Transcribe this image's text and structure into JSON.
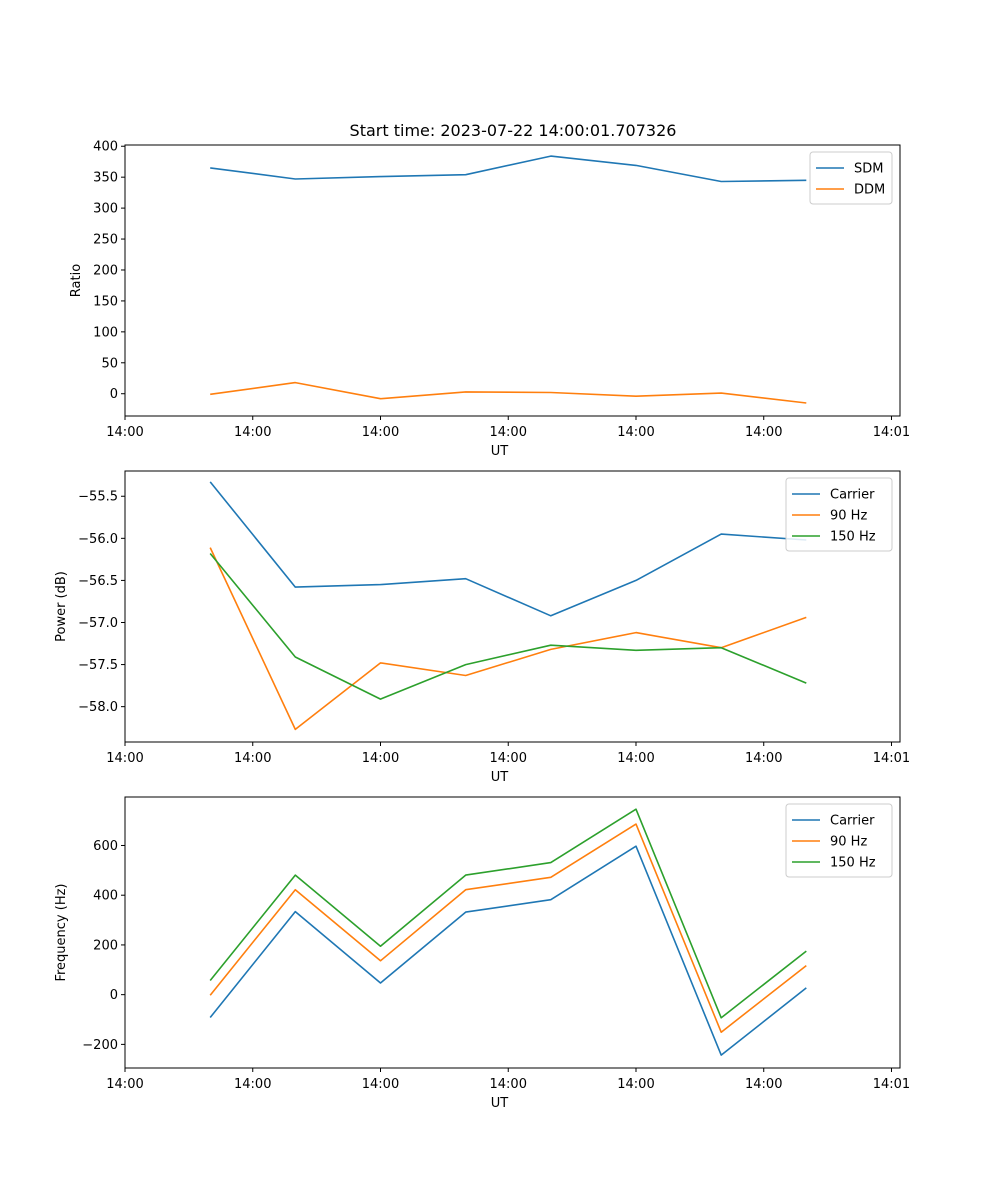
{
  "figure": {
    "title": "Start time: 2023-07-22 14:00:01.707326"
  },
  "colors": {
    "blue": "#1f77b4",
    "orange": "#ff7f0e",
    "green": "#2ca02c"
  },
  "chart_data": [
    {
      "type": "line",
      "title": "Start time: 2023-07-22 14:00:01.707326",
      "xlabel": "UT",
      "ylabel": "Ratio",
      "x": [
        1,
        2,
        3,
        4,
        5,
        6,
        7,
        8
      ],
      "xlim": [
        0,
        9.1
      ],
      "xticks": [
        {
          "v": 0,
          "label": "14:00"
        },
        {
          "v": 1.5,
          "label": "14:00"
        },
        {
          "v": 3,
          "label": "14:00"
        },
        {
          "v": 4.5,
          "label": "14:00"
        },
        {
          "v": 6,
          "label": "14:00"
        },
        {
          "v": 7.5,
          "label": "14:00"
        },
        {
          "v": 9,
          "label": "14:01"
        }
      ],
      "ylim": [
        -36,
        402
      ],
      "yticks": [
        {
          "v": 0,
          "label": "0"
        },
        {
          "v": 50,
          "label": "50"
        },
        {
          "v": 100,
          "label": "100"
        },
        {
          "v": 150,
          "label": "150"
        },
        {
          "v": 200,
          "label": "200"
        },
        {
          "v": 250,
          "label": "250"
        },
        {
          "v": 300,
          "label": "300"
        },
        {
          "v": 350,
          "label": "350"
        },
        {
          "v": 400,
          "label": "400"
        }
      ],
      "legend": "top-right",
      "series": [
        {
          "name": "SDM",
          "color": "#1f77b4",
          "values": [
            365,
            347,
            351,
            354,
            384,
            369,
            343,
            345
          ]
        },
        {
          "name": "DDM",
          "color": "#ff7f0e",
          "values": [
            -1,
            18,
            -8,
            3,
            2,
            -4,
            1,
            -15
          ]
        }
      ]
    },
    {
      "type": "line",
      "title": "",
      "xlabel": "UT",
      "ylabel": "Power (dB)",
      "x": [
        1,
        2,
        3,
        4,
        5,
        6,
        7,
        8
      ],
      "xlim": [
        0,
        9.1
      ],
      "xticks": [
        {
          "v": 0,
          "label": "14:00"
        },
        {
          "v": 1.5,
          "label": "14:00"
        },
        {
          "v": 3,
          "label": "14:00"
        },
        {
          "v": 4.5,
          "label": "14:00"
        },
        {
          "v": 6,
          "label": "14:00"
        },
        {
          "v": 7.5,
          "label": "14:00"
        },
        {
          "v": 9,
          "label": "14:01"
        }
      ],
      "ylim": [
        -58.42,
        -55.2
      ],
      "yticks": [
        {
          "v": -55.5,
          "label": "−55.5"
        },
        {
          "v": -56.0,
          "label": "−56.0"
        },
        {
          "v": -56.5,
          "label": "−56.5"
        },
        {
          "v": -57.0,
          "label": "−57.0"
        },
        {
          "v": -57.5,
          "label": "−57.5"
        },
        {
          "v": -58.0,
          "label": "−58.0"
        }
      ],
      "legend": "top-right",
      "series": [
        {
          "name": "Carrier",
          "color": "#1f77b4",
          "values": [
            -55.33,
            -56.58,
            -56.55,
            -56.48,
            -56.92,
            -56.5,
            -55.95,
            -56.02
          ]
        },
        {
          "name": "90 Hz",
          "color": "#ff7f0e",
          "values": [
            -56.11,
            -58.27,
            -57.48,
            -57.63,
            -57.32,
            -57.12,
            -57.3,
            -56.94
          ]
        },
        {
          "name": "150 Hz",
          "color": "#2ca02c",
          "values": [
            -56.18,
            -57.41,
            -57.91,
            -57.5,
            -57.27,
            -57.33,
            -57.3,
            -57.72
          ]
        }
      ]
    },
    {
      "type": "line",
      "title": "",
      "xlabel": "UT",
      "ylabel": "Frequency (Hz)",
      "x": [
        1,
        2,
        3,
        4,
        5,
        6,
        7,
        8
      ],
      "xlim": [
        0,
        9.1
      ],
      "xticks": [
        {
          "v": 0,
          "label": "14:00"
        },
        {
          "v": 1.5,
          "label": "14:00"
        },
        {
          "v": 3,
          "label": "14:00"
        },
        {
          "v": 4.5,
          "label": "14:00"
        },
        {
          "v": 6,
          "label": "14:00"
        },
        {
          "v": 7.5,
          "label": "14:00"
        },
        {
          "v": 9,
          "label": "14:01"
        }
      ],
      "ylim": [
        -295,
        795
      ],
      "yticks": [
        {
          "v": -200,
          "label": "−200"
        },
        {
          "v": 0,
          "label": "0"
        },
        {
          "v": 200,
          "label": "200"
        },
        {
          "v": 400,
          "label": "400"
        },
        {
          "v": 600,
          "label": "600"
        }
      ],
      "legend": "top-right",
      "series": [
        {
          "name": "Carrier",
          "color": "#1f77b4",
          "values": [
            -92,
            334,
            47,
            332,
            382,
            597,
            -243,
            27
          ]
        },
        {
          "name": "90 Hz",
          "color": "#ff7f0e",
          "values": [
            -2,
            422,
            136,
            422,
            472,
            686,
            -151,
            117
          ]
        },
        {
          "name": "150 Hz",
          "color": "#2ca02c",
          "values": [
            57,
            481,
            195,
            481,
            531,
            746,
            -93,
            175
          ]
        }
      ]
    }
  ]
}
